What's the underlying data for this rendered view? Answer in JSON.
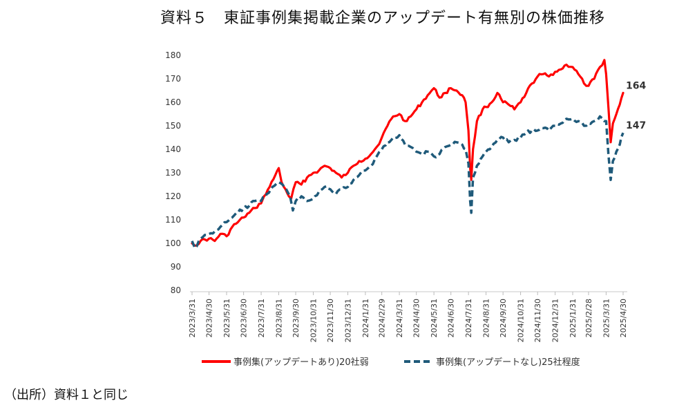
{
  "title": "資料５　東証事例集掲載企業のアップデート有無別の株価推移",
  "source_note": "（出所）資料１と同じ",
  "chart_data": {
    "type": "line",
    "ylim": [
      80,
      180
    ],
    "yticks": [
      80,
      90,
      100,
      110,
      120,
      130,
      140,
      150,
      160,
      170,
      180
    ],
    "x_tick_labels": [
      "2023/3/31",
      "2023/4/30",
      "2023/5/31",
      "2023/6/30",
      "2023/7/31",
      "2023/8/31",
      "2023/9/30",
      "2023/10/31",
      "2023/11/30",
      "2023/12/31",
      "2024/1/31",
      "2024/2/29",
      "2024/3/31",
      "2024/4/30",
      "2024/5/31",
      "2024/6/30",
      "2024/7/31",
      "2024/8/31",
      "2024/9/30",
      "2024/10/31",
      "2024/11/30",
      "2024/12/31",
      "2025/1/31",
      "2025/2/28",
      "2025/3/31",
      "2025/4/30"
    ],
    "grid": false,
    "legend_position": "bottom",
    "series": [
      {
        "name": "事例集(アップデートあり)20社弱",
        "color": "#ff0000",
        "style": "solid",
        "end_label": "164",
        "points": [
          [
            "2023/3/31",
            100
          ],
          [
            "2023/4/5",
            99
          ],
          [
            "2023/4/15",
            101
          ],
          [
            "2023/4/30",
            102
          ],
          [
            "2023/5/10",
            101
          ],
          [
            "2023/5/20",
            104
          ],
          [
            "2023/5/31",
            103
          ],
          [
            "2023/6/10",
            107
          ],
          [
            "2023/6/20",
            109
          ],
          [
            "2023/6/30",
            111
          ],
          [
            "2023/7/10",
            113
          ],
          [
            "2023/7/20",
            115
          ],
          [
            "2023/7/31",
            117
          ],
          [
            "2023/8/5",
            120
          ],
          [
            "2023/8/15",
            124
          ],
          [
            "2023/8/25",
            129
          ],
          [
            "2023/8/31",
            132
          ],
          [
            "2023/9/5",
            126
          ],
          [
            "2023/9/12",
            123
          ],
          [
            "2023/9/18",
            120
          ],
          [
            "2023/9/22",
            119
          ],
          [
            "2023/9/30",
            126
          ],
          [
            "2023/10/10",
            125
          ],
          [
            "2023/10/20",
            128
          ],
          [
            "2023/10/31",
            130
          ],
          [
            "2023/11/10",
            131
          ],
          [
            "2023/11/20",
            133
          ],
          [
            "2023/11/30",
            132
          ],
          [
            "2023/12/10",
            130
          ],
          [
            "2023/12/20",
            128
          ],
          [
            "2023/12/31",
            130
          ],
          [
            "2024/1/10",
            133
          ],
          [
            "2024/1/20",
            135
          ],
          [
            "2024/1/31",
            136
          ],
          [
            "2024/2/10",
            138
          ],
          [
            "2024/2/20",
            141
          ],
          [
            "2024/2/29",
            145
          ],
          [
            "2024/3/10",
            150
          ],
          [
            "2024/3/20",
            154
          ],
          [
            "2024/3/31",
            155
          ],
          [
            "2024/4/10",
            152
          ],
          [
            "2024/4/20",
            154
          ],
          [
            "2024/4/30",
            157
          ],
          [
            "2024/5/10",
            160
          ],
          [
            "2024/5/20",
            163
          ],
          [
            "2024/5/31",
            166
          ],
          [
            "2024/6/10",
            162
          ],
          [
            "2024/6/20",
            164
          ],
          [
            "2024/6/30",
            166
          ],
          [
            "2024/7/10",
            165
          ],
          [
            "2024/7/20",
            163
          ],
          [
            "2024/7/26",
            160
          ],
          [
            "2024/7/31",
            148
          ],
          [
            "2024/8/3",
            132
          ],
          [
            "2024/8/5",
            127
          ],
          [
            "2024/8/8",
            140
          ],
          [
            "2024/8/15",
            152
          ],
          [
            "2024/8/25",
            157
          ],
          [
            "2024/8/31",
            158
          ],
          [
            "2024/9/10",
            160
          ],
          [
            "2024/9/20",
            164
          ],
          [
            "2024/9/30",
            160
          ],
          [
            "2024/10/10",
            159
          ],
          [
            "2024/10/20",
            157
          ],
          [
            "2024/10/31",
            160
          ],
          [
            "2024/11/10",
            164
          ],
          [
            "2024/11/20",
            168
          ],
          [
            "2024/11/30",
            171
          ],
          [
            "2024/12/10",
            172
          ],
          [
            "2024/12/20",
            171
          ],
          [
            "2024/12/31",
            173
          ],
          [
            "2025/1/10",
            174
          ],
          [
            "2025/1/20",
            176
          ],
          [
            "2025/1/31",
            175
          ],
          [
            "2025/2/10",
            172
          ],
          [
            "2025/2/20",
            168
          ],
          [
            "2025/2/28",
            167
          ],
          [
            "2025/3/10",
            170
          ],
          [
            "2025/3/20",
            175
          ],
          [
            "2025/3/28",
            178
          ],
          [
            "2025/3/31",
            172
          ],
          [
            "2025/4/4",
            158
          ],
          [
            "2025/4/8",
            143
          ],
          [
            "2025/4/12",
            151
          ],
          [
            "2025/4/18",
            155
          ],
          [
            "2025/4/24",
            159
          ],
          [
            "2025/4/30",
            164
          ]
        ]
      },
      {
        "name": "事例集(アップデートなし)25社程度",
        "color": "#1f5a7a",
        "style": "dashed",
        "end_label": "147",
        "points": [
          [
            "2023/3/31",
            101
          ],
          [
            "2023/4/5",
            98
          ],
          [
            "2023/4/15",
            102
          ],
          [
            "2023/4/30",
            104
          ],
          [
            "2023/5/10",
            105
          ],
          [
            "2023/5/20",
            107
          ],
          [
            "2023/5/31",
            109
          ],
          [
            "2023/6/10",
            111
          ],
          [
            "2023/6/20",
            113
          ],
          [
            "2023/6/30",
            115
          ],
          [
            "2023/7/10",
            116
          ],
          [
            "2023/7/20",
            118
          ],
          [
            "2023/7/31",
            118
          ],
          [
            "2023/8/10",
            121
          ],
          [
            "2023/8/20",
            124
          ],
          [
            "2023/8/31",
            126
          ],
          [
            "2023/9/10",
            124
          ],
          [
            "2023/9/20",
            120
          ],
          [
            "2023/9/25",
            114
          ],
          [
            "2023/9/30",
            118
          ],
          [
            "2023/10/10",
            120
          ],
          [
            "2023/10/20",
            118
          ],
          [
            "2023/10/31",
            119
          ],
          [
            "2023/11/10",
            122
          ],
          [
            "2023/11/20",
            124
          ],
          [
            "2023/11/30",
            123
          ],
          [
            "2023/12/10",
            121
          ],
          [
            "2023/12/20",
            123
          ],
          [
            "2023/12/31",
            124
          ],
          [
            "2024/1/10",
            127
          ],
          [
            "2024/1/20",
            129
          ],
          [
            "2024/1/31",
            131
          ],
          [
            "2024/2/10",
            133
          ],
          [
            "2024/2/20",
            137
          ],
          [
            "2024/2/29",
            140
          ],
          [
            "2024/3/10",
            143
          ],
          [
            "2024/3/20",
            145
          ],
          [
            "2024/3/31",
            146
          ],
          [
            "2024/4/10",
            142
          ],
          [
            "2024/4/20",
            141
          ],
          [
            "2024/4/30",
            139
          ],
          [
            "2024/5/10",
            138
          ],
          [
            "2024/5/20",
            139
          ],
          [
            "2024/5/31",
            137
          ],
          [
            "2024/6/10",
            138
          ],
          [
            "2024/6/20",
            141
          ],
          [
            "2024/6/30",
            142
          ],
          [
            "2024/7/10",
            143
          ],
          [
            "2024/7/20",
            142
          ],
          [
            "2024/7/26",
            140
          ],
          [
            "2024/7/31",
            134
          ],
          [
            "2024/8/3",
            118
          ],
          [
            "2024/8/5",
            113
          ],
          [
            "2024/8/8",
            128
          ],
          [
            "2024/8/15",
            133
          ],
          [
            "2024/8/25",
            137
          ],
          [
            "2024/8/31",
            139
          ],
          [
            "2024/9/10",
            141
          ],
          [
            "2024/9/20",
            144
          ],
          [
            "2024/9/30",
            145
          ],
          [
            "2024/10/10",
            143
          ],
          [
            "2024/10/20",
            144
          ],
          [
            "2024/10/31",
            145
          ],
          [
            "2024/11/10",
            147
          ],
          [
            "2024/11/20",
            148
          ],
          [
            "2024/11/30",
            148
          ],
          [
            "2024/12/10",
            149
          ],
          [
            "2024/12/20",
            148
          ],
          [
            "2024/12/31",
            150
          ],
          [
            "2025/1/10",
            151
          ],
          [
            "2025/1/20",
            153
          ],
          [
            "2025/1/31",
            153
          ],
          [
            "2025/2/10",
            152
          ],
          [
            "2025/2/20",
            150
          ],
          [
            "2025/2/28",
            151
          ],
          [
            "2025/3/10",
            152
          ],
          [
            "2025/3/20",
            154
          ],
          [
            "2025/3/31",
            152
          ],
          [
            "2025/4/4",
            138
          ],
          [
            "2025/4/8",
            127
          ],
          [
            "2025/4/12",
            135
          ],
          [
            "2025/4/18",
            139
          ],
          [
            "2025/4/24",
            142
          ],
          [
            "2025/4/30",
            147
          ]
        ]
      }
    ]
  }
}
